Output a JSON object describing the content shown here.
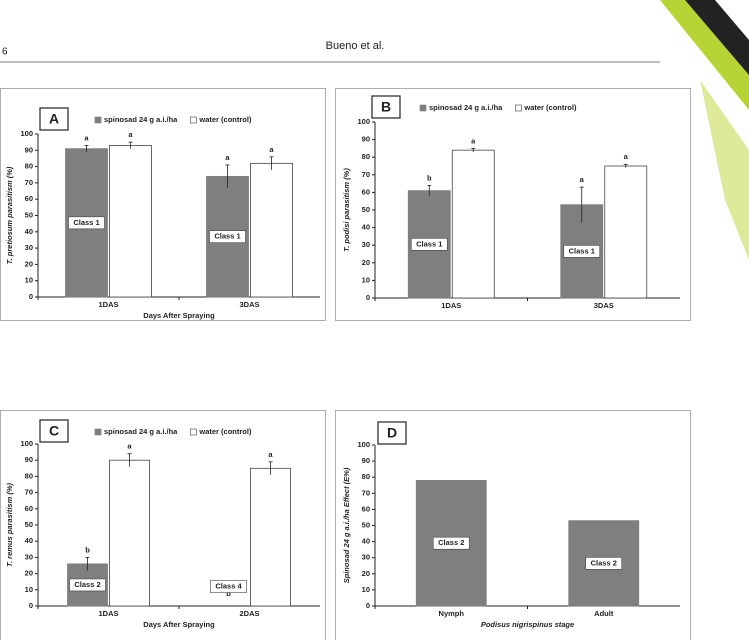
{
  "header": {
    "page_number": "6",
    "authors": "Bueno et al."
  },
  "chart_data": [
    {
      "type": "bar",
      "panel": "A",
      "categories": [
        "1DAS",
        "3DAS"
      ],
      "series": [
        {
          "name": "spinosad 24 g a.i./ha",
          "color": "#7f7f7f",
          "values": [
            91,
            74
          ],
          "errors": [
            2,
            7
          ],
          "letters": [
            "a",
            "a"
          ],
          "class_labels": [
            "Class 1",
            "Class 1"
          ]
        },
        {
          "name": "water (control)",
          "color": "#ffffff",
          "values": [
            93,
            82
          ],
          "errors": [
            2,
            4
          ],
          "letters": [
            "a",
            "a"
          ]
        }
      ],
      "ylim": [
        0,
        100
      ],
      "yticks": [
        0,
        10,
        20,
        30,
        40,
        50,
        60,
        70,
        80,
        90,
        100
      ],
      "xlabel": "Days After Spraying",
      "ylabel": "T. pretiosum parasitism (%)"
    },
    {
      "type": "bar",
      "panel": "B",
      "categories": [
        "1DAS",
        "3DAS"
      ],
      "series": [
        {
          "name": "spinosad 24 g a.i./ha",
          "color": "#7f7f7f",
          "values": [
            61,
            53
          ],
          "errors": [
            3,
            10
          ],
          "letters": [
            "b",
            "a"
          ],
          "class_labels": [
            "Class 1",
            "Class 1"
          ]
        },
        {
          "name": "water (control)",
          "color": "#ffffff",
          "values": [
            84,
            75
          ],
          "errors": [
            1,
            1
          ],
          "letters": [
            "a",
            "a"
          ]
        }
      ],
      "ylim": [
        0,
        100
      ],
      "yticks": [
        0,
        10,
        20,
        30,
        40,
        50,
        60,
        70,
        80,
        90,
        100
      ],
      "ylabel": "T. podisi parasitism (%)"
    },
    {
      "type": "bar",
      "panel": "C",
      "categories": [
        "1DAS",
        "2DAS"
      ],
      "series": [
        {
          "name": "spinosad 24 g a.i./ha",
          "color": "#7f7f7f",
          "values": [
            26,
            0
          ],
          "errors": [
            4,
            null
          ],
          "letters": [
            "b",
            "b"
          ],
          "class_labels": [
            "Class 2",
            "Class 4"
          ]
        },
        {
          "name": "water (control)",
          "color": "#ffffff",
          "values": [
            90,
            85
          ],
          "errors": [
            4,
            4
          ],
          "letters": [
            "a",
            "a"
          ]
        }
      ],
      "ylim": [
        0,
        100
      ],
      "yticks": [
        0,
        10,
        20,
        30,
        40,
        50,
        60,
        70,
        80,
        90,
        100
      ],
      "xlabel": "Days After Spraying",
      "ylabel": "T. remus parasitism (%)"
    },
    {
      "type": "bar",
      "panel": "D",
      "categories": [
        "Nymph",
        "Adult"
      ],
      "series": [
        {
          "color": "#7f7f7f",
          "values": [
            78,
            53
          ],
          "class_labels": [
            "Class 2",
            "Class 2"
          ]
        }
      ],
      "ylim": [
        0,
        100
      ],
      "yticks": [
        0,
        10,
        20,
        30,
        40,
        50,
        60,
        70,
        80,
        90,
        100
      ],
      "xlabel": "Podisus nigrispinus stage",
      "ylabel": "Spinosad 24 g a.i./ha Effect (E%)"
    }
  ]
}
